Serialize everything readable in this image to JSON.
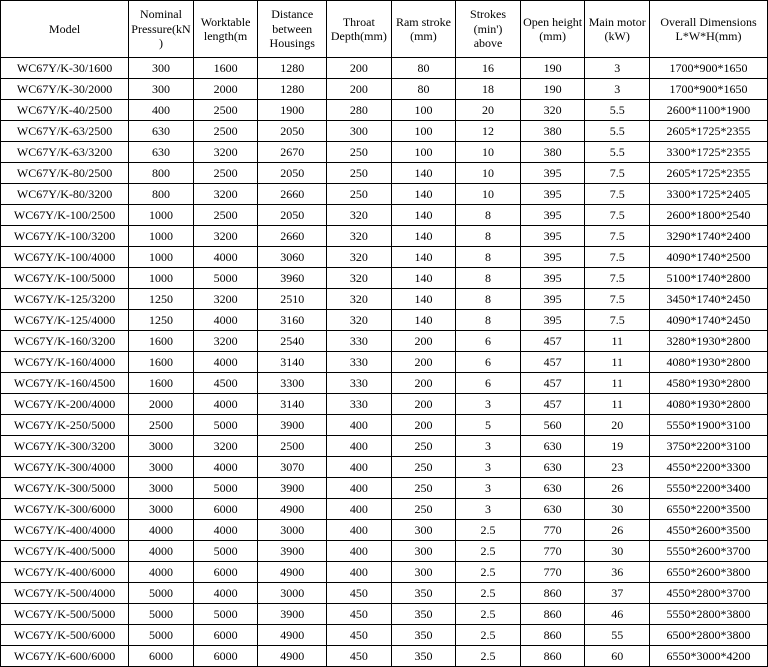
{
  "columns": [
    {
      "key": "model",
      "label": "Model",
      "class": "c-model"
    },
    {
      "key": "press",
      "label": "Nominal Pressure(kN)",
      "class": "c-std"
    },
    {
      "key": "wtl",
      "label": "Worktable length(m",
      "class": "c-std"
    },
    {
      "key": "dist",
      "label": "Distance between Housings",
      "class": "c-dist"
    },
    {
      "key": "throat",
      "label": "Throat Depth(mm)",
      "class": "c-std"
    },
    {
      "key": "ram",
      "label": "Ram stroke (mm)",
      "class": "c-std"
    },
    {
      "key": "strokes",
      "label": "Strokes (min') above",
      "class": "c-std"
    },
    {
      "key": "open",
      "label": "Open height (mm)",
      "class": "c-std"
    },
    {
      "key": "motor",
      "label": "Main motor (kW)",
      "class": "c-std"
    },
    {
      "key": "dim",
      "label": "Overall Dimensions L*W*H(mm)",
      "class": "c-dim"
    }
  ],
  "rows": [
    [
      "WC67Y/K-30/1600",
      "300",
      "1600",
      "1280",
      "200",
      "80",
      "16",
      "190",
      "3",
      "1700*900*1650"
    ],
    [
      "WC67Y/K-30/2000",
      "300",
      "2000",
      "1280",
      "200",
      "80",
      "18",
      "190",
      "3",
      "1700*900*1650"
    ],
    [
      "WC67Y/K-40/2500",
      "400",
      "2500",
      "1900",
      "280",
      "100",
      "20",
      "320",
      "5.5",
      "2600*1100*1900"
    ],
    [
      "WC67Y/K-63/2500",
      "630",
      "2500",
      "2050",
      "300",
      "100",
      "12",
      "380",
      "5.5",
      "2605*1725*2355"
    ],
    [
      "WC67Y/K-63/3200",
      "630",
      "3200",
      "2670",
      "250",
      "100",
      "10",
      "380",
      "5.5",
      "3300*1725*2355"
    ],
    [
      "WC67Y/K-80/2500",
      "800",
      "2500",
      "2050",
      "250",
      "140",
      "10",
      "395",
      "7.5",
      "2605*1725*2355"
    ],
    [
      "WC67Y/K-80/3200",
      "800",
      "3200",
      "2660",
      "250",
      "140",
      "10",
      "395",
      "7.5",
      "3300*1725*2405"
    ],
    [
      "WC67Y/K-100/2500",
      "1000",
      "2500",
      "2050",
      "320",
      "140",
      "8",
      "395",
      "7.5",
      "2600*1800*2540"
    ],
    [
      "WC67Y/K-100/3200",
      "1000",
      "3200",
      "2660",
      "320",
      "140",
      "8",
      "395",
      "7.5",
      "3290*1740*2400"
    ],
    [
      "WC67Y/K-100/4000",
      "1000",
      "4000",
      "3060",
      "320",
      "140",
      "8",
      "395",
      "7.5",
      "4090*1740*2500"
    ],
    [
      "WC67Y/K-100/5000",
      "1000",
      "5000",
      "3960",
      "320",
      "140",
      "8",
      "395",
      "7.5",
      "5100*1740*2800"
    ],
    [
      "WC67Y/K-125/3200",
      "1250",
      "3200",
      "2510",
      "320",
      "140",
      "8",
      "395",
      "7.5",
      "3450*1740*2450"
    ],
    [
      "WC67Y/K-125/4000",
      "1250",
      "4000",
      "3160",
      "320",
      "140",
      "8",
      "395",
      "7.5",
      "4090*1740*2450"
    ],
    [
      "WC67Y/K-160/3200",
      "1600",
      "3200",
      "2540",
      "330",
      "200",
      "6",
      "457",
      "11",
      "3280*1930*2800"
    ],
    [
      "WC67Y/K-160/4000",
      "1600",
      "4000",
      "3140",
      "330",
      "200",
      "6",
      "457",
      "11",
      "4080*1930*2800"
    ],
    [
      "WC67Y/K-160/4500",
      "1600",
      "4500",
      "3300",
      "330",
      "200",
      "6",
      "457",
      "11",
      "4580*1930*2800"
    ],
    [
      "WC67Y/K-200/4000",
      "2000",
      "4000",
      "3140",
      "330",
      "200",
      "3",
      "457",
      "11",
      "4080*1930*2800"
    ],
    [
      "WC67Y/K-250/5000",
      "2500",
      "5000",
      "3900",
      "400",
      "200",
      "5",
      "560",
      "20",
      "5550*1900*3100"
    ],
    [
      "WC67Y/K-300/3200",
      "3000",
      "3200",
      "2500",
      "400",
      "250",
      "3",
      "630",
      "19",
      "3750*2200*3100"
    ],
    [
      "WC67Y/K-300/4000",
      "3000",
      "4000",
      "3070",
      "400",
      "250",
      "3",
      "630",
      "23",
      "4550*2200*3300"
    ],
    [
      "WC67Y/K-300/5000",
      "3000",
      "5000",
      "3900",
      "400",
      "250",
      "3",
      "630",
      "26",
      "5550*2200*3400"
    ],
    [
      "WC67Y/K-300/6000",
      "3000",
      "6000",
      "4900",
      "400",
      "250",
      "3",
      "630",
      "30",
      "6550*2200*3500"
    ],
    [
      "WC67Y/K-400/4000",
      "4000",
      "4000",
      "3000",
      "400",
      "300",
      "2.5",
      "770",
      "26",
      "4550*2600*3500"
    ],
    [
      "WC67Y/K-400/5000",
      "4000",
      "5000",
      "3900",
      "400",
      "300",
      "2.5",
      "770",
      "30",
      "5550*2600*3700"
    ],
    [
      "WC67Y/K-400/6000",
      "4000",
      "6000",
      "4900",
      "400",
      "300",
      "2.5",
      "770",
      "36",
      "6550*2600*3800"
    ],
    [
      "WC67Y/K-500/4000",
      "5000",
      "4000",
      "3000",
      "450",
      "350",
      "2.5",
      "860",
      "37",
      "4550*2800*3700"
    ],
    [
      "WC67Y/K-500/5000",
      "5000",
      "5000",
      "3900",
      "450",
      "350",
      "2.5",
      "860",
      "46",
      "5550*2800*3800"
    ],
    [
      "WC67Y/K-500/6000",
      "5000",
      "6000",
      "4900",
      "450",
      "350",
      "2.5",
      "860",
      "55",
      "6500*2800*3800"
    ],
    [
      "WC67Y/K-600/6000",
      "6000",
      "6000",
      "4900",
      "450",
      "350",
      "2.5",
      "860",
      "60",
      "6550*3000*4200"
    ]
  ],
  "style": {
    "background_color": "#ffffff",
    "text_color": "#000000",
    "border_color": "#000000",
    "font_family": "Times New Roman",
    "header_fontsize": 12,
    "body_fontsize": 12
  }
}
